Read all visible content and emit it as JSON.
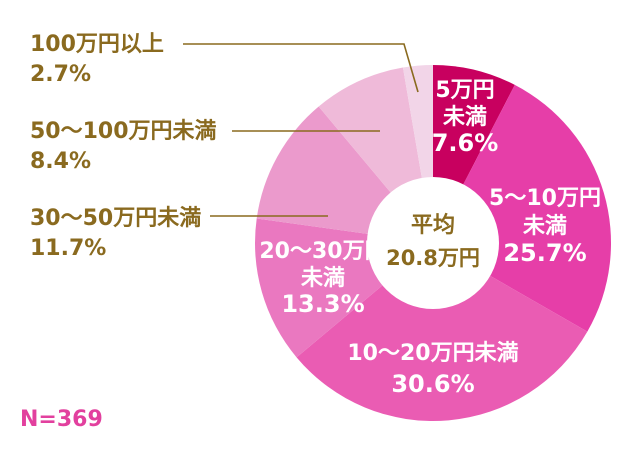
{
  "chart_data": {
    "type": "pie",
    "donut": true,
    "start_direction": "top",
    "order": "clockwise",
    "categories": [
      "5万円未満",
      "5〜10万円未満",
      "10〜20万円未満",
      "20〜30万円未満",
      "30〜50万円未満",
      "50〜100万円未満",
      "100万円以上"
    ],
    "values": [
      7.6,
      25.7,
      30.6,
      13.3,
      11.7,
      8.4,
      2.7
    ],
    "labels": [
      {
        "category": "5万円未満",
        "lines": [
          "5万円",
          "未満",
          "7.6%"
        ],
        "placement": "inside"
      },
      {
        "category": "5〜10万円未満",
        "lines": [
          "5〜10万円",
          "未満",
          "25.7%"
        ],
        "placement": "inside"
      },
      {
        "category": "10〜20万円未満",
        "lines": [
          "10〜20万円未満",
          "30.6%"
        ],
        "placement": "inside"
      },
      {
        "category": "20〜30万円未満",
        "lines": [
          "20〜30万円",
          "未満",
          "13.3%"
        ],
        "placement": "inside"
      },
      {
        "category": "30〜50万円未満",
        "lines": [
          "30〜50万円未満",
          "11.7%"
        ],
        "placement": "outside-left"
      },
      {
        "category": "50〜100万円未満",
        "lines": [
          "50〜100万円未満",
          "8.4%"
        ],
        "placement": "outside-left"
      },
      {
        "category": "100万円以上",
        "lines": [
          "100万円以上",
          "2.7%"
        ],
        "placement": "outside-left"
      }
    ],
    "colors": [
      "#c8005f",
      "#e63ea8",
      "#ea5cb3",
      "#ea78c0",
      "#eb9acc",
      "#efbad9",
      "#f2d5e8"
    ],
    "center": {
      "title": "平均",
      "value": "20.8万円"
    },
    "sample_size": "N=369",
    "title": "",
    "legend": "none"
  },
  "colors": {
    "label_text_outside": "#8a6a1f",
    "label_text_inside": "#ffffff",
    "sample_size_text": "#e2409e",
    "background": "#ffffff"
  }
}
